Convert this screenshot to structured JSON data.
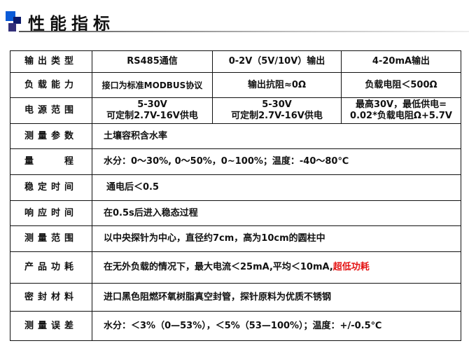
{
  "title": "性能指标",
  "colors": {
    "accent_blue": "#0a5bd8",
    "navy": "#0c1a6a",
    "purple": "#33307a",
    "highlight_red": "#e41212"
  },
  "rows": [
    {
      "label": "输出类型",
      "cells": [
        "RS485通信",
        "0-2V（5V/10V）输出",
        "4-20mA输出"
      ]
    },
    {
      "label": "负载能力",
      "cells": [
        "接口为标准MODBUS协议",
        "输出抗阻≈0Ω",
        "负载电阻＜500Ω"
      ]
    },
    {
      "label": "电源范围",
      "cells": [
        [
          "5-30V",
          "可定制2.7V-16V供电"
        ],
        [
          "5-30V",
          "可定制2.7V-16V供电"
        ],
        [
          "最高30V，最低供电=",
          "0.02*负载电阻Ω+5.7V"
        ]
      ]
    },
    {
      "label": "测量参数",
      "value": "土壤容积含水率"
    },
    {
      "label": "量　　程",
      "value": "水分：0～30%, 0～50%，0~100%；温度：-40～80℃"
    },
    {
      "label": "稳定时间",
      "value": "通电后＜0.5"
    },
    {
      "label": "响应时间",
      "value": "在0.5s后进入稳态过程"
    },
    {
      "label": "测量范围",
      "value": "以中央探针为中心，直径约7cm，高为10cm的圆柱中"
    },
    {
      "label": "产品功耗",
      "value": "在无外负载的情况下，最大电流＜25mA,平均＜10mA,",
      "highlight": "超低功耗"
    },
    {
      "label": "密封材料",
      "value": "进口黑色阻燃环氧树脂真空封管，探针原料为优质不锈钢"
    },
    {
      "label": "测量误差",
      "value": "水分：＜3%（0—53%），＜5%（53—100%）；温度：+/-0.5℃"
    }
  ]
}
